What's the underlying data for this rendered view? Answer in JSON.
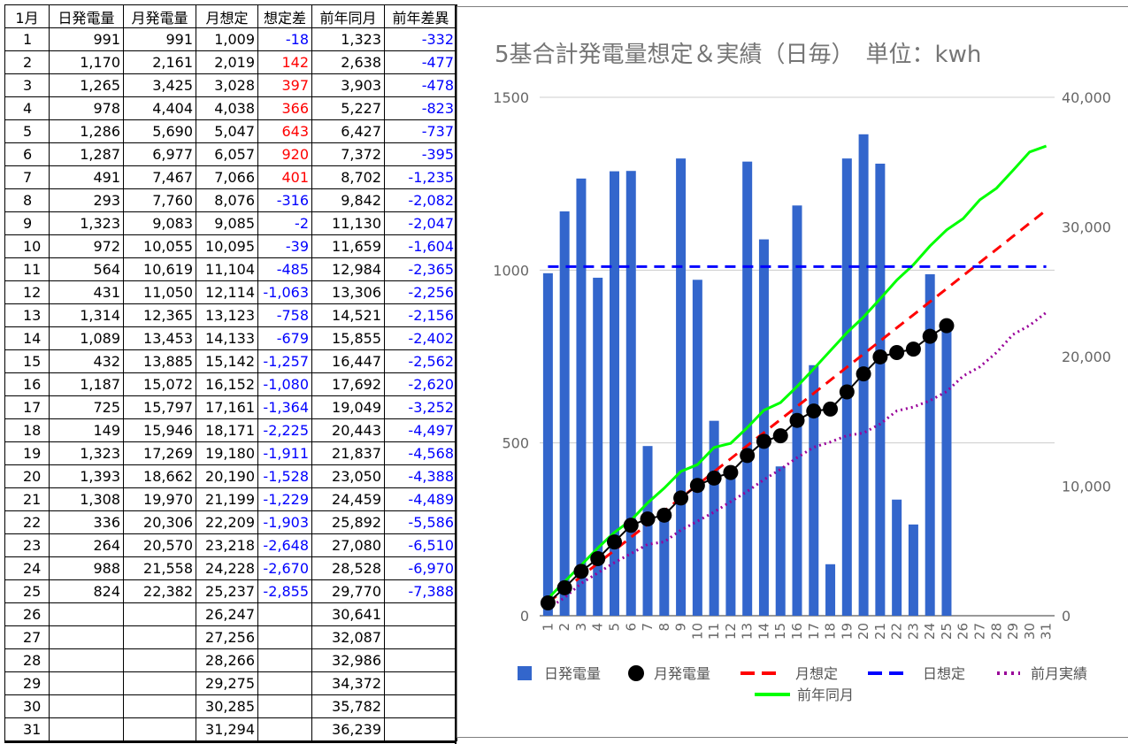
{
  "table": {
    "headers": [
      "1月",
      "日発電量",
      "月発電量",
      "月想定",
      "想定差",
      "前年同月",
      "前年差異"
    ],
    "rows": [
      [
        "1",
        "991",
        "991",
        "1,009",
        "-18",
        "1,323",
        "-332"
      ],
      [
        "2",
        "1,170",
        "2,161",
        "2,019",
        "142",
        "2,638",
        "-477"
      ],
      [
        "3",
        "1,265",
        "3,425",
        "3,028",
        "397",
        "3,903",
        "-478"
      ],
      [
        "4",
        "978",
        "4,404",
        "4,038",
        "366",
        "5,227",
        "-823"
      ],
      [
        "5",
        "1,286",
        "5,690",
        "5,047",
        "643",
        "6,427",
        "-737"
      ],
      [
        "6",
        "1,287",
        "6,977",
        "6,057",
        "920",
        "7,372",
        "-395"
      ],
      [
        "7",
        "491",
        "7,467",
        "7,066",
        "401",
        "8,702",
        "-1,235"
      ],
      [
        "8",
        "293",
        "7,760",
        "8,076",
        "-316",
        "9,842",
        "-2,082"
      ],
      [
        "9",
        "1,323",
        "9,083",
        "9,085",
        "-2",
        "11,130",
        "-2,047"
      ],
      [
        "10",
        "972",
        "10,055",
        "10,095",
        "-39",
        "11,659",
        "-1,604"
      ],
      [
        "11",
        "564",
        "10,619",
        "11,104",
        "-485",
        "12,984",
        "-2,365"
      ],
      [
        "12",
        "431",
        "11,050",
        "12,114",
        "-1,063",
        "13,306",
        "-2,256"
      ],
      [
        "13",
        "1,314",
        "12,365",
        "13,123",
        "-758",
        "14,521",
        "-2,156"
      ],
      [
        "14",
        "1,089",
        "13,453",
        "14,133",
        "-679",
        "15,855",
        "-2,402"
      ],
      [
        "15",
        "432",
        "13,885",
        "15,142",
        "-1,257",
        "16,447",
        "-2,562"
      ],
      [
        "16",
        "1,187",
        "15,072",
        "16,152",
        "-1,080",
        "17,692",
        "-2,620"
      ],
      [
        "17",
        "725",
        "15,797",
        "17,161",
        "-1,364",
        "19,049",
        "-3,252"
      ],
      [
        "18",
        "149",
        "15,946",
        "18,171",
        "-2,225",
        "20,443",
        "-4,497"
      ],
      [
        "19",
        "1,323",
        "17,269",
        "19,180",
        "-1,911",
        "21,837",
        "-4,568"
      ],
      [
        "20",
        "1,393",
        "18,662",
        "20,190",
        "-1,528",
        "23,050",
        "-4,388"
      ],
      [
        "21",
        "1,308",
        "19,970",
        "21,199",
        "-1,229",
        "24,459",
        "-4,489"
      ],
      [
        "22",
        "336",
        "20,306",
        "22,209",
        "-1,903",
        "25,892",
        "-5,586"
      ],
      [
        "23",
        "264",
        "20,570",
        "23,218",
        "-2,648",
        "27,080",
        "-6,510"
      ],
      [
        "24",
        "988",
        "21,558",
        "24,228",
        "-2,670",
        "28,528",
        "-6,970"
      ],
      [
        "25",
        "824",
        "22,382",
        "25,237",
        "-2,855",
        "29,770",
        "-7,388"
      ],
      [
        "26",
        "",
        "",
        "26,247",
        "",
        "30,641",
        ""
      ],
      [
        "27",
        "",
        "",
        "27,256",
        "",
        "32,087",
        ""
      ],
      [
        "28",
        "",
        "",
        "28,266",
        "",
        "32,986",
        ""
      ],
      [
        "29",
        "",
        "",
        "29,275",
        "",
        "34,372",
        ""
      ],
      [
        "30",
        "",
        "",
        "30,285",
        "",
        "35,782",
        ""
      ],
      [
        "31",
        "",
        "",
        "31,294",
        "",
        "36,239",
        ""
      ]
    ]
  },
  "colors": {
    "bar": "#3366cc",
    "monthly_actual": "#000000",
    "monthly_forecast": "#ff0000",
    "daily_forecast": "#0000ff",
    "prev_month": "#990099",
    "prev_year": "#00ff00",
    "negative_text": "#0000ff",
    "positive_text": "#ff0000"
  },
  "chart_data": {
    "type": "bar",
    "title": "5基合計発電量想定＆実績（日毎）　単位：kwh",
    "categories": [
      "1",
      "2",
      "3",
      "4",
      "5",
      "6",
      "7",
      "8",
      "9",
      "10",
      "11",
      "12",
      "13",
      "14",
      "15",
      "16",
      "17",
      "18",
      "19",
      "20",
      "21",
      "22",
      "23",
      "24",
      "25",
      "26",
      "27",
      "28",
      "29",
      "30",
      "31"
    ],
    "ylim_left": [
      0,
      1500
    ],
    "yticks_left": [
      "0",
      "500",
      "1000",
      "1500"
    ],
    "ylim_right": [
      0,
      40000
    ],
    "yticks_right": [
      "0",
      "10,000",
      "20,000",
      "30,000",
      "40,000"
    ],
    "grid": true,
    "legend_position": "bottom",
    "series": [
      {
        "name": "日発電量",
        "type": "bar",
        "axis": "left",
        "values": [
          991,
          1170,
          1265,
          978,
          1286,
          1287,
          491,
          293,
          1323,
          972,
          564,
          431,
          1314,
          1089,
          432,
          1187,
          725,
          149,
          1323,
          1393,
          1308,
          336,
          264,
          988,
          824,
          null,
          null,
          null,
          null,
          null,
          null
        ]
      },
      {
        "name": "月発電量",
        "type": "line-markers",
        "axis": "right",
        "values": [
          991,
          2161,
          3425,
          4404,
          5690,
          6977,
          7467,
          7760,
          9083,
          10055,
          10619,
          11050,
          12365,
          13453,
          13885,
          15072,
          15797,
          15946,
          17269,
          18662,
          19970,
          20306,
          20570,
          21558,
          22382,
          null,
          null,
          null,
          null,
          null,
          null
        ]
      },
      {
        "name": "月想定",
        "type": "line-dashed",
        "axis": "right",
        "values": [
          1009,
          2019,
          3028,
          4038,
          5047,
          6057,
          7066,
          8076,
          9085,
          10095,
          11104,
          12114,
          13123,
          14133,
          15142,
          16152,
          17161,
          18171,
          19180,
          20190,
          21199,
          22209,
          23218,
          24228,
          25237,
          26247,
          27256,
          28266,
          29275,
          30285,
          31294
        ]
      },
      {
        "name": "日想定",
        "type": "line-dashed",
        "axis": "left",
        "values": [
          1010,
          1010,
          1010,
          1010,
          1010,
          1010,
          1010,
          1010,
          1010,
          1010,
          1010,
          1010,
          1010,
          1010,
          1010,
          1010,
          1010,
          1010,
          1010,
          1010,
          1010,
          1010,
          1010,
          1010,
          1010,
          1010,
          1010,
          1010,
          1010,
          1010,
          1010
        ]
      },
      {
        "name": "前月実績",
        "type": "line-dotted",
        "axis": "right",
        "values": [
          550,
          1400,
          2500,
          3300,
          4100,
          4800,
          5500,
          5700,
          6600,
          7300,
          8000,
          8800,
          9600,
          10500,
          11300,
          12200,
          13000,
          13400,
          13900,
          14100,
          14800,
          15800,
          16100,
          16600,
          17300,
          18500,
          19200,
          20300,
          21700,
          22400,
          23400
        ]
      },
      {
        "name": "前年同月",
        "type": "line",
        "axis": "right",
        "values": [
          1323,
          2638,
          3903,
          5227,
          6427,
          7372,
          8702,
          9842,
          11130,
          11659,
          12984,
          13306,
          14521,
          15855,
          16447,
          17692,
          19049,
          20443,
          21837,
          23050,
          24459,
          25892,
          27080,
          28528,
          29770,
          30641,
          32087,
          32986,
          34372,
          35782,
          36239
        ]
      }
    ]
  }
}
